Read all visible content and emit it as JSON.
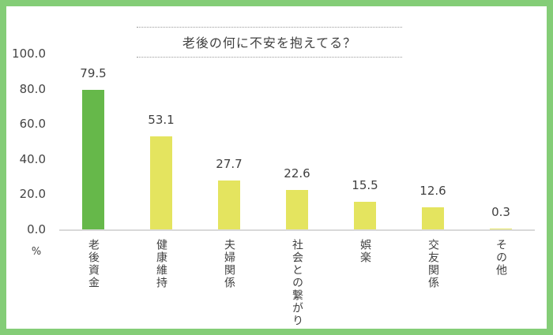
{
  "frame": {
    "border_color": "#84cd77",
    "background": "#ffffff"
  },
  "chart_data": {
    "type": "bar",
    "title": "老後の何に不安を抱えてる？",
    "categories": [
      "老後資金",
      "健康維持",
      "夫婦関係",
      "社会との繋がり",
      "娯楽",
      "交友関係",
      "その他"
    ],
    "values": [
      79.5,
      53.1,
      27.7,
      22.6,
      15.5,
      12.6,
      0.3
    ],
    "value_labels": [
      "79.5",
      "53.1",
      "27.7",
      "22.6",
      "15.5",
      "12.6",
      "0.3"
    ],
    "ylabel": "%",
    "ylim": [
      0,
      100
    ],
    "yticks": [
      0,
      20,
      40,
      60,
      80,
      100
    ],
    "ytick_labels": [
      "0.0",
      "20.0",
      "40.0",
      "60.0",
      "80.0",
      "100.0"
    ],
    "grid": false,
    "legend": null,
    "highlight_color": "#66b84a",
    "default_color": "#e4e45f",
    "bar_colors": [
      "#66b84a",
      "#e4e45f",
      "#e4e45f",
      "#e4e45f",
      "#e4e45f",
      "#e4e45f",
      "#e4e45f"
    ],
    "axis_line_color": "#d9d9d9",
    "text_color": "#404040"
  }
}
